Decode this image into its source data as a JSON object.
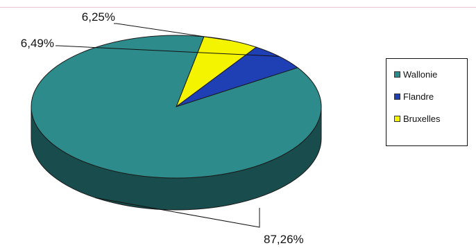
{
  "chart_data": {
    "type": "pie",
    "style": "3d",
    "categories": [
      "Wallonie",
      "Flandre",
      "Bruxelles"
    ],
    "values": [
      87.26,
      6.49,
      6.25
    ],
    "labels": [
      "87,26%",
      "6,49%",
      "6,25%"
    ],
    "colors": [
      "#2e8b8b",
      "#1f3fb4",
      "#f4f400"
    ],
    "legend": {
      "position": "right",
      "entries": [
        {
          "label": "Wallonie",
          "color": "#2e8b8b"
        },
        {
          "label": "Flandre",
          "color": "#1f3fb4"
        },
        {
          "label": "Bruxelles",
          "color": "#f4f400"
        }
      ]
    }
  }
}
